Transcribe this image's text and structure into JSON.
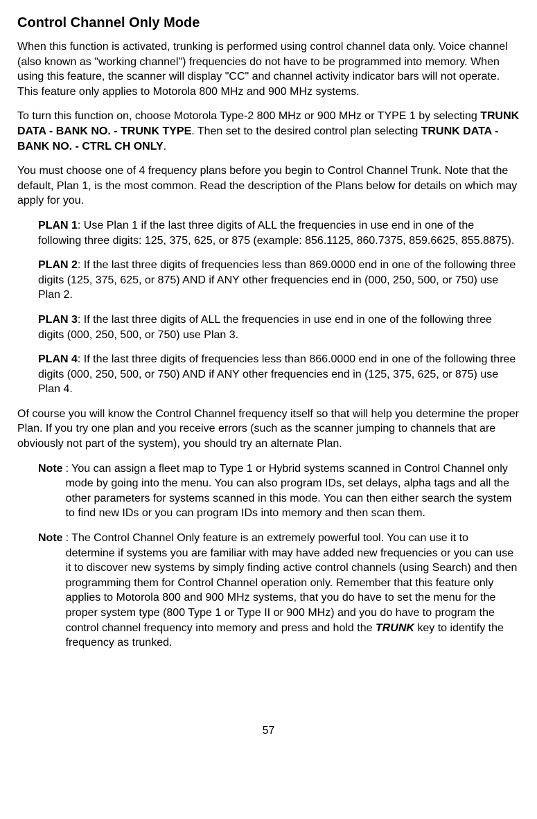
{
  "heading": "Control Channel Only Mode",
  "intro_p1": "When this function is activated, trunking is performed using control channel data only. Voice channel (also known as \"working channel\") frequencies do not have to be programmed into memory. When using this feature, the scanner will display \"CC\" and channel activity indicator bars will not operate. This feature only applies to Motorola 800 MHz and 900 MHz systems.",
  "intro_p2_pre": "To turn this function on, choose Motorola Type-2 800 MHz or 900 MHz or TYPE 1 by selecting ",
  "intro_p2_bold1": "TRUNK DATA - BANK NO. - TRUNK TYPE",
  "intro_p2_mid": ". Then set to the desired control plan selecting ",
  "intro_p2_bold2": "TRUNK DATA - BANK NO. - CTRL CH ONLY",
  "intro_p2_end": ".",
  "intro_p3": "You must choose one of 4 frequency plans before you begin to Control Channel Trunk. Note that the default, Plan 1, is the most common. Read the description of the Plans below for details on which may apply for you.",
  "plan1_label": "PLAN 1",
  "plan1_text": ": Use Plan 1 if the last three digits of ALL the frequencies in use end in one of the following three digits: 125, 375, 625, or 875 (example: 856.1125, 860.7375, 859.6625, 855.8875).",
  "plan2_label": "PLAN 2",
  "plan2_text": ": If the last three digits of frequencies less than 869.0000 end in one of the following three digits (125, 375, 625, or 875) AND if ANY other frequencies end in (000, 250, 500, or 750) use Plan 2.",
  "plan3_label": "PLAN 3",
  "plan3_text": ": If the last three digits of ALL the frequencies in use end in one of the following three digits (000, 250, 500, or 750) use Plan 3.",
  "plan4_label": "PLAN 4",
  "plan4_text": ": If the last three digits of frequencies less than 866.0000 end in one of the following three digits (000, 250, 500, or 750) AND if ANY other frequencies end in (125, 375, 625, or 875) use Plan 4.",
  "closing_p": "Of course you will know the Control Channel frequency itself so that will help you determine the proper Plan. If you try one plan and you receive errors (such as the scanner jumping to channels that are obviously not part of the system), you should try an alternate Plan.",
  "note_label": "Note",
  "note1_text": ": You can assign a fleet map to Type 1 or Hybrid systems scanned in Control Channel only mode by going into the menu. You can also program IDs, set delays, alpha tags and all the other parameters for systems scanned in this mode. You can then either search the system to find new IDs or you can program IDs into memory and then scan them.",
  "note2_pre": ": The Control Channel Only feature is an extremely powerful tool. You can use it to determine if systems you are familiar with may have added new frequencies or you can use it to discover new systems by simply finding active control channels (using Search) and then programming them for Control Channel operation only. Remember that this feature only applies to Motorola 800 and 900 MHz systems, that you do have to set the menu for the proper system type (800 Type 1 or Type II or 900 MHz) and you do have to program the control channel frequency into memory and press and hold the ",
  "note2_bold": "TRUNK",
  "note2_post": " key to identify the frequency as trunked.",
  "page_number": "57"
}
